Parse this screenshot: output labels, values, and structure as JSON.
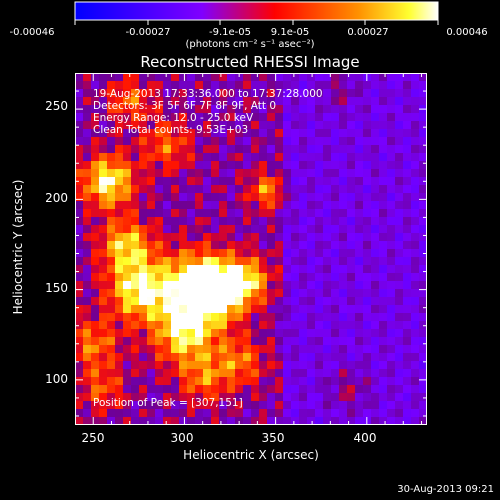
{
  "colorbar": {
    "tick_labels": [
      "-0.00046",
      "-0.00027",
      "-9.1e-05",
      "9.1e-05",
      "0.00027",
      "0.00046"
    ],
    "units_label": "(photons cm⁻² s⁻¹ asec⁻²)",
    "min": -0.00046,
    "max": 0.00046,
    "colormap": [
      "#0000ff",
      "#7a00ff",
      "#ff0000",
      "#ff8c00",
      "#ffff00",
      "#ffffff"
    ]
  },
  "chart_data": {
    "type": "heatmap",
    "title": "Reconstructed RHESSI Image",
    "xlabel": "Heliocentric X (arcsec)",
    "ylabel": "Heliocentric Y (arcsec)",
    "xlim": [
      240,
      433
    ],
    "ylim": [
      75,
      270
    ],
    "xticks": [
      "250",
      "300",
      "350",
      "400"
    ],
    "yticks": [
      "100",
      "150",
      "200",
      "250"
    ],
    "annotations": [
      "19-Aug-2013 17:33:36.000 to 17:37:28.000",
      "Detectors: 3F 5F 6F 7F 8F 9F, Att 0",
      "Energy Range: 12.0 - 25.0 keV",
      "Clean    Total counts: 9.53E+03"
    ],
    "peak_label": "Position of Peak = [307,151]",
    "peak": [
      307,
      151
    ]
  },
  "footer": {
    "timestamp": "30-Aug-2013 09:21"
  }
}
